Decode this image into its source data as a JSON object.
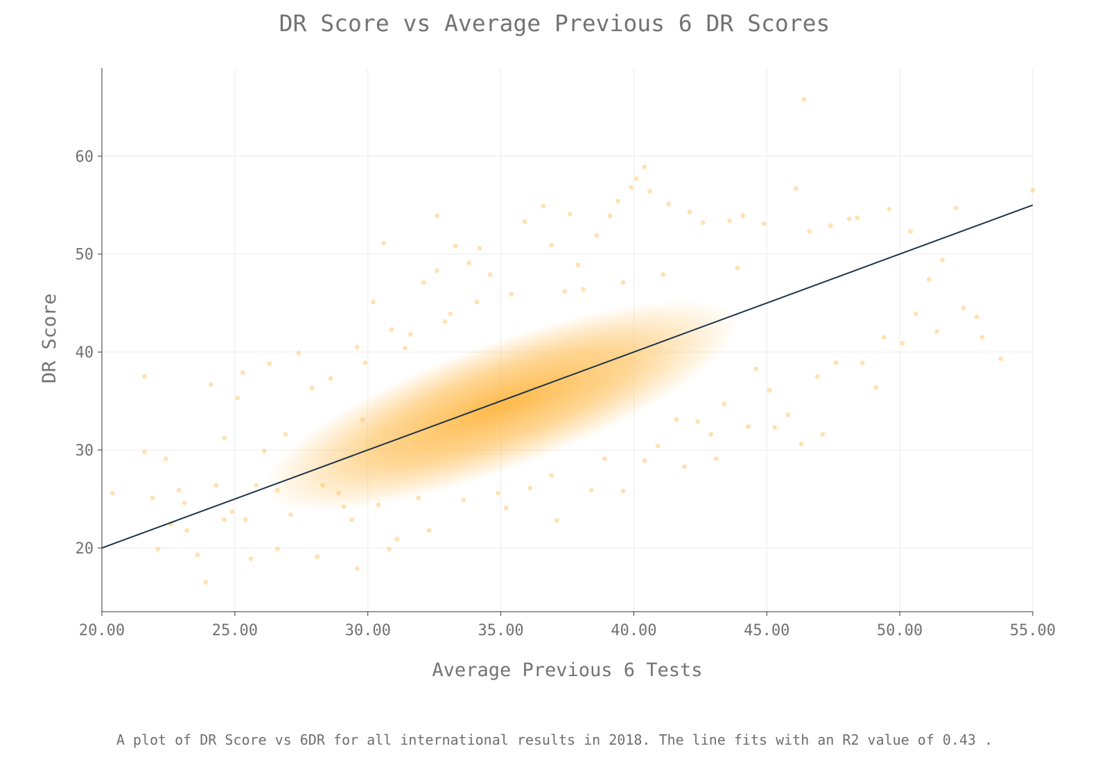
{
  "chart_data": {
    "type": "scatter",
    "title": "DR Score vs Average Previous 6 DR Scores",
    "xlabel": "Average Previous 6 Tests",
    "ylabel": "DR Score",
    "caption": "A plot of DR Score vs 6DR for all international results in 2018. The line fits with an R2 value of 0.43 .",
    "xlim": [
      20,
      55
    ],
    "ylim": [
      13.5,
      69
    ],
    "x_ticks": [
      "20.00",
      "25.00",
      "30.00",
      "35.00",
      "40.00",
      "45.00",
      "50.00",
      "55.00"
    ],
    "y_ticks": [
      "20",
      "30",
      "40",
      "50",
      "60"
    ],
    "grid": true,
    "point_color": "#ffb640",
    "line_color": "#1c3347",
    "fit_line": {
      "x": [
        20,
        55
      ],
      "y": [
        20,
        55
      ]
    },
    "series": [
      {
        "values_description_note": "",
        "points": [
          [
            20.4,
            25.6
          ],
          [
            21.6,
            37.5
          ],
          [
            21.6,
            29.8
          ],
          [
            21.9,
            25.1
          ],
          [
            22.1,
            19.9
          ],
          [
            22.4,
            29.1
          ],
          [
            22.9,
            25.9
          ],
          [
            23.2,
            21.8
          ],
          [
            23.6,
            19.3
          ],
          [
            23.9,
            16.5
          ],
          [
            24.1,
            36.7
          ],
          [
            24.3,
            26.4
          ],
          [
            24.6,
            31.2
          ],
          [
            24.9,
            23.7
          ],
          [
            25.1,
            35.3
          ],
          [
            25.3,
            37.9
          ],
          [
            25.4,
            22.9
          ],
          [
            25.6,
            18.9
          ],
          [
            25.8,
            26.4
          ],
          [
            26.1,
            29.9
          ],
          [
            26.3,
            38.8
          ],
          [
            26.6,
            19.9
          ],
          [
            26.9,
            31.6
          ],
          [
            27.4,
            39.9
          ],
          [
            28.1,
            19.1
          ],
          [
            28.3,
            26.4
          ],
          [
            29.1,
            24.2
          ],
          [
            29.6,
            40.5
          ],
          [
            29.6,
            17.9
          ],
          [
            29.8,
            33.1
          ],
          [
            30.2,
            45.1
          ],
          [
            30.6,
            51.1
          ],
          [
            30.8,
            19.9
          ],
          [
            31.1,
            20.9
          ],
          [
            31.6,
            41.8
          ],
          [
            32.1,
            47.1
          ],
          [
            32.3,
            21.8
          ],
          [
            32.6,
            53.9
          ],
          [
            32.6,
            48.3
          ],
          [
            33.1,
            43.9
          ],
          [
            33.3,
            50.8
          ],
          [
            33.8,
            49.1
          ],
          [
            34.2,
            50.6
          ],
          [
            34.6,
            47.9
          ],
          [
            35.2,
            24.1
          ],
          [
            35.9,
            53.3
          ],
          [
            36.6,
            54.9
          ],
          [
            36.9,
            50.9
          ],
          [
            37.1,
            22.8
          ],
          [
            37.6,
            54.1
          ],
          [
            37.9,
            48.9
          ],
          [
            38.4,
            25.9
          ],
          [
            38.6,
            51.9
          ],
          [
            39.1,
            53.9
          ],
          [
            39.4,
            55.4
          ],
          [
            39.6,
            25.8
          ],
          [
            39.9,
            56.8
          ],
          [
            40.1,
            57.7
          ],
          [
            40.4,
            58.9
          ],
          [
            40.6,
            56.4
          ],
          [
            40.4,
            28.9
          ],
          [
            41.3,
            55.1
          ],
          [
            41.9,
            28.3
          ],
          [
            42.1,
            54.3
          ],
          [
            42.6,
            53.2
          ],
          [
            43.1,
            29.1
          ],
          [
            43.6,
            53.4
          ],
          [
            44.1,
            53.9
          ],
          [
            44.3,
            32.4
          ],
          [
            44.9,
            53.1
          ],
          [
            45.3,
            32.3
          ],
          [
            45.8,
            33.6
          ],
          [
            46.1,
            56.7
          ],
          [
            46.3,
            30.6
          ],
          [
            46.4,
            65.8
          ],
          [
            46.6,
            52.3
          ],
          [
            47.1,
            31.6
          ],
          [
            47.4,
            52.9
          ],
          [
            48.1,
            53.6
          ],
          [
            48.4,
            53.7
          ],
          [
            48.6,
            38.9
          ],
          [
            49.1,
            36.4
          ],
          [
            49.4,
            41.5
          ],
          [
            49.6,
            54.6
          ],
          [
            50.1,
            40.9
          ],
          [
            50.4,
            52.3
          ],
          [
            50.6,
            43.9
          ],
          [
            51.1,
            47.4
          ],
          [
            51.4,
            42.1
          ],
          [
            51.6,
            49.4
          ],
          [
            52.1,
            54.7
          ],
          [
            52.4,
            44.5
          ],
          [
            52.9,
            43.6
          ],
          [
            53.1,
            41.5
          ],
          [
            53.8,
            39.3
          ],
          [
            55.0,
            56.5
          ],
          [
            30.9,
            42.3
          ],
          [
            28.6,
            37.3
          ],
          [
            27.9,
            36.3
          ],
          [
            44.6,
            38.3
          ],
          [
            45.1,
            36.1
          ],
          [
            43.4,
            34.7
          ],
          [
            46.9,
            37.5
          ],
          [
            47.6,
            38.9
          ],
          [
            41.6,
            33.1
          ],
          [
            42.9,
            31.6
          ],
          [
            36.1,
            26.1
          ],
          [
            34.9,
            25.6
          ],
          [
            33.6,
            24.9
          ],
          [
            31.9,
            25.1
          ],
          [
            30.4,
            24.4
          ],
          [
            29.4,
            22.9
          ],
          [
            28.9,
            25.6
          ],
          [
            27.1,
            23.4
          ],
          [
            26.6,
            25.9
          ],
          [
            24.6,
            22.9
          ],
          [
            23.1,
            24.6
          ],
          [
            22.6,
            22.4
          ],
          [
            38.1,
            46.4
          ],
          [
            39.6,
            47.1
          ],
          [
            41.1,
            47.9
          ],
          [
            43.9,
            48.6
          ],
          [
            37.4,
            46.2
          ],
          [
            35.4,
            45.9
          ],
          [
            34.1,
            45.1
          ],
          [
            32.9,
            43.1
          ],
          [
            31.4,
            40.4
          ],
          [
            29.9,
            38.9
          ],
          [
            36.9,
            27.4
          ],
          [
            38.9,
            29.1
          ],
          [
            40.9,
            30.4
          ],
          [
            42.4,
            32.9
          ]
        ]
      }
    ]
  }
}
